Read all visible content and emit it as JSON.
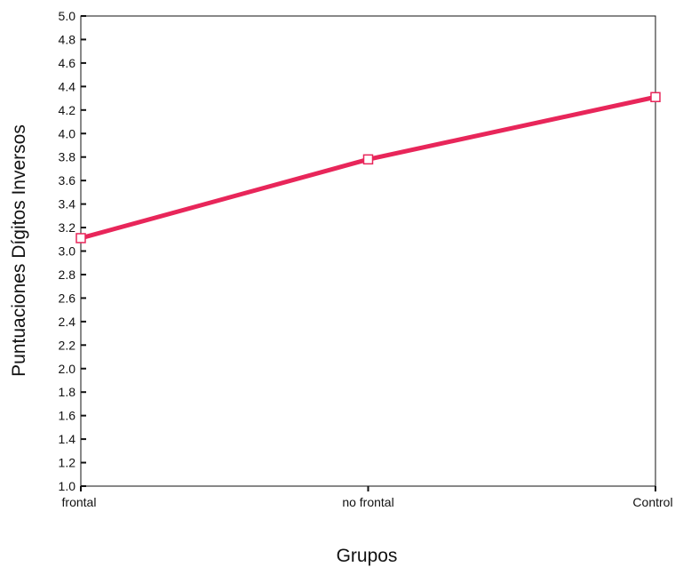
{
  "chart_data": {
    "type": "line",
    "xlabel": "Grupos",
    "ylabel": "Puntuaciones Dígitos Inversos",
    "categories": [
      "frontal",
      "no frontal",
      "Control"
    ],
    "series": [
      {
        "values": [
          3.11,
          3.78,
          4.31
        ],
        "color": "#e8265a",
        "marker": "open-square"
      }
    ],
    "ylim": [
      1.0,
      5.0
    ],
    "yticks": [
      "1.0",
      "1.2",
      "1.4",
      "1.6",
      "1.8",
      "2.0",
      "2.2",
      "2.4",
      "2.6",
      "2.8",
      "3.0",
      "3.2",
      "3.4",
      "3.6",
      "3.8",
      "4.0",
      "4.2",
      "4.4",
      "4.6",
      "4.8",
      "5.0"
    ],
    "grid": false,
    "legend": "none"
  }
}
